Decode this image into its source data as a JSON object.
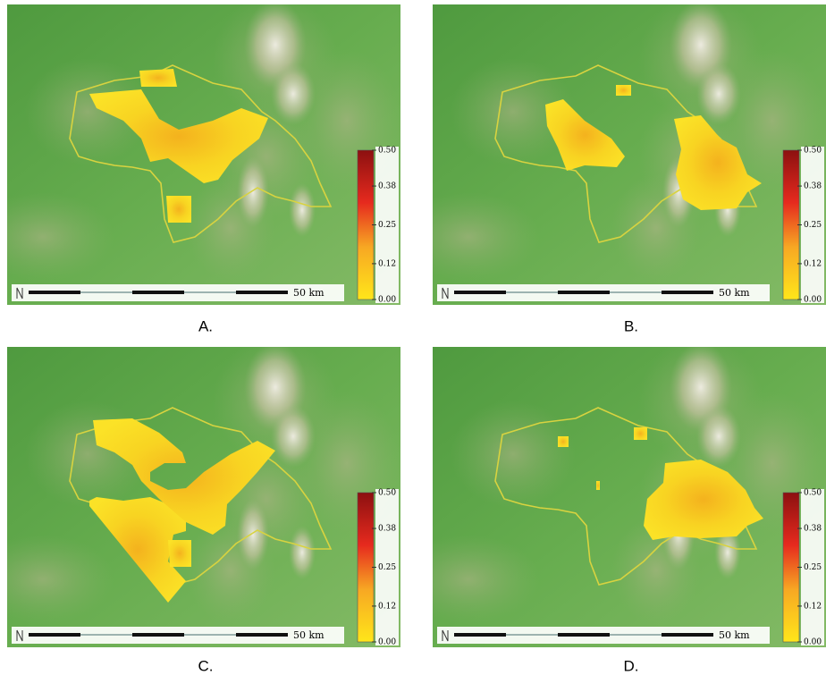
{
  "panels": [
    {
      "label": "A."
    },
    {
      "label": "B."
    },
    {
      "label": "C."
    },
    {
      "label": "D."
    }
  ],
  "colorbar": {
    "lim": [
      0,
      0.5
    ],
    "ticks": [
      {
        "value": 0.5,
        "label": "0.50"
      },
      0.38,
      0.25,
      0.12,
      {
        "value": 0,
        "label": "0.00"
      }
    ]
  },
  "scale_bar": {
    "label": "50 km"
  }
}
